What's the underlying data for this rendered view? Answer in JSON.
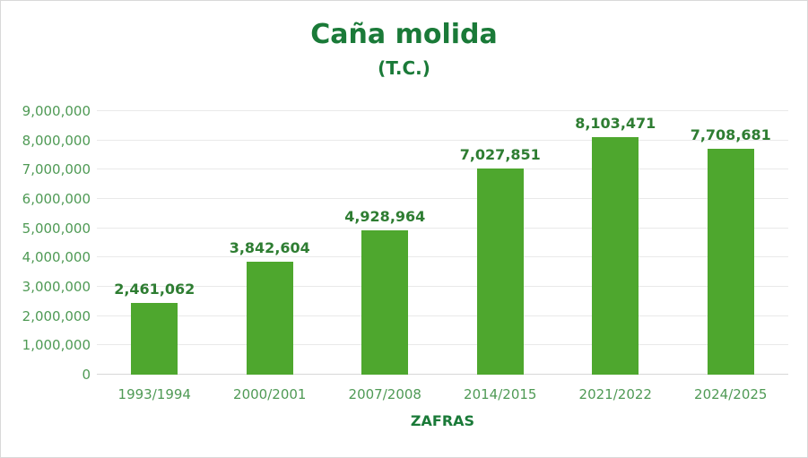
{
  "chart": {
    "title": "Caña molida",
    "subtitle": "(T.C.)",
    "xaxis_title": "ZAFRAS",
    "colors": {
      "bar": "#4ea72e",
      "title_text": "#1a7a38",
      "data_label_text": "#2e7d32",
      "axis_label_text": "#4f9a55",
      "gridline": "#e9e9e9",
      "baseline": "#d7d7d7",
      "frame_border": "#d9d9d9",
      "background": "#ffffff"
    }
  },
  "chart_data": {
    "type": "bar",
    "title": "Caña molida",
    "subtitle": "(T.C.)",
    "xlabel": "ZAFRAS",
    "ylabel": "",
    "categories": [
      "1993/1994",
      "2000/2001",
      "2007/2008",
      "2014/2015",
      "2021/2022",
      "2024/2025"
    ],
    "values": [
      2461062,
      3842604,
      4928964,
      7027851,
      8103471,
      7708681
    ],
    "data_labels": [
      "2,461,062",
      "3,842,604",
      "4,928,964",
      "7,027,851",
      "8,103,471",
      "7,708,681"
    ],
    "ylim": [
      0,
      9000000
    ],
    "ytick_step": 1000000,
    "ytick_labels": [
      "0",
      "1,000,000",
      "2,000,000",
      "3,000,000",
      "4,000,000",
      "5,000,000",
      "6,000,000",
      "7,000,000",
      "8,000,000",
      "9,000,000"
    ],
    "grid": true,
    "legend": false,
    "data_label_position": "outside-end",
    "bar_color": "#4ea72e"
  }
}
